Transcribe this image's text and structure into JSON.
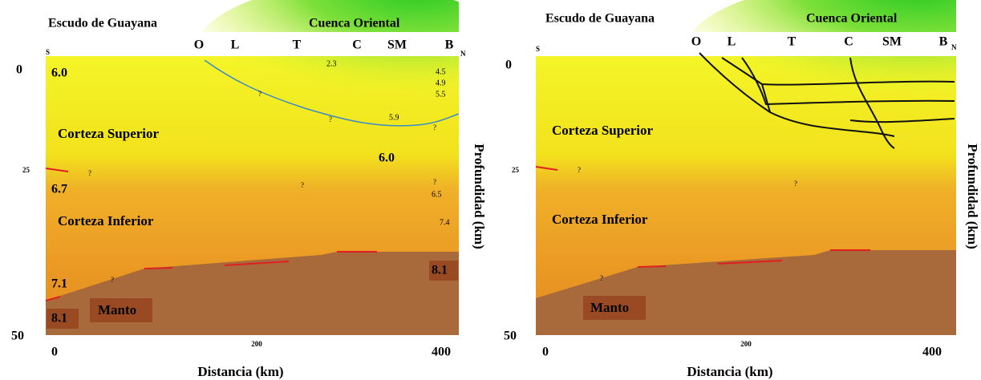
{
  "panels": [
    {
      "regions": {
        "left": "Escudo de Guayana",
        "right": "Cuenca Oriental"
      },
      "stations": [
        "O",
        "L",
        "T",
        "C",
        "SM",
        "B"
      ],
      "south": "S",
      "north": "N",
      "y_ticks": [
        "0",
        "25",
        "50"
      ],
      "x_ticks": [
        "0",
        "200",
        "400"
      ],
      "x_label": "Distancia (km)",
      "y_label": "Profundidad (km)",
      "layers": [
        "Corteza Superior",
        "Corteza Inferior",
        "Manto"
      ],
      "velocities": [
        "6.0",
        "6.7",
        "7.1",
        "8.1",
        "6.0",
        "6.5",
        "7.4",
        "8.1",
        "5.9",
        "4.5",
        "4.9",
        "5.5",
        "2.3"
      ],
      "question_marks": [
        "?",
        "?",
        "?",
        "?",
        "?",
        "?",
        "?"
      ]
    },
    {
      "regions": {
        "left": "Escudo de Guayana",
        "right": "Cuenca Oriental"
      },
      "stations": [
        "O",
        "L",
        "T",
        "C",
        "SM",
        "B"
      ],
      "south": "S",
      "north": "N",
      "y_ticks": [
        "0",
        "25",
        "50"
      ],
      "x_ticks": [
        "0",
        "200",
        "400"
      ],
      "x_label": "Distancia (km)",
      "y_label": "Profundidad (km)",
      "layers": [
        "Corteza Superior",
        "Corteza Inferior",
        "Manto"
      ],
      "question_marks": [
        "?",
        "?",
        "?"
      ]
    }
  ]
}
